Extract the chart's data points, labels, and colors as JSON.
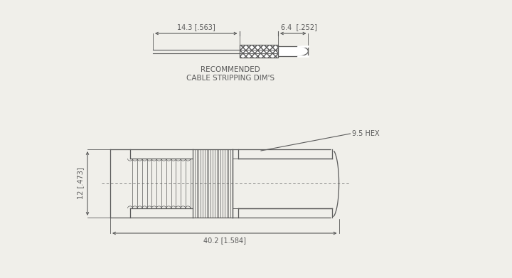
{
  "bg_color": "#f0efea",
  "line_color": "#5a5a5a",
  "lw": 0.9,
  "fs": 7.0,
  "cable_label": "RECOMMENDED\nCABLE STRIPPING DIM'S",
  "dim1": "14.3 [.563]",
  "dim2": "6.4  [.252]",
  "dim3": "40.2 [1.584]",
  "dim4": "12 [.473]",
  "dim5": "9.5 HEX"
}
